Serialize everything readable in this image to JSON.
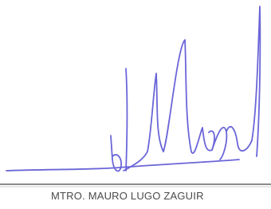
{
  "signature": {
    "name": "MTRO. MAURO LUGO ZAGUIR"
  }
}
